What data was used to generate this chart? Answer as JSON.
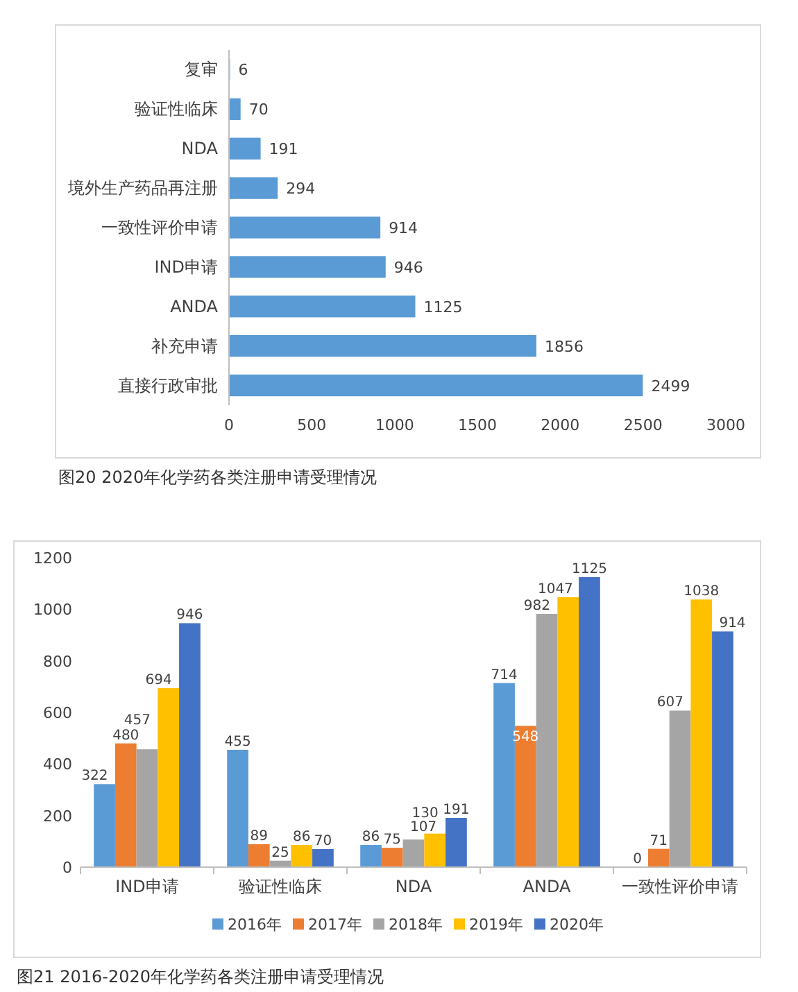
{
  "chart_data": [
    {
      "type": "bar",
      "orientation": "horizontal",
      "categories": [
        "复审",
        "验证性临床",
        "NDA",
        "境外生产药品再注册",
        "一致性评价申请",
        "IND申请",
        "ANDA",
        "补充申请",
        "直接行政审批"
      ],
      "values": [
        6,
        70,
        191,
        294,
        914,
        946,
        1125,
        1856,
        2499
      ],
      "color": "#5b9bd5",
      "xlim": [
        0,
        3000
      ],
      "xticks": [
        0,
        500,
        1000,
        1500,
        2000,
        2500,
        3000
      ],
      "data_labels": true,
      "annotations": [
        "图20  2020年化学药各类注册申请受理情况"
      ]
    },
    {
      "type": "bar",
      "categories": [
        "IND申请",
        "验证性临床",
        "NDA",
        "ANDA",
        "一致性评价申请"
      ],
      "series": [
        {
          "name": "2016年",
          "color": "#5b9bd5",
          "values": [
            322,
            455,
            86,
            714,
            0
          ]
        },
        {
          "name": "2017年",
          "color": "#ed7d31",
          "values": [
            480,
            89,
            75,
            548,
            71
          ]
        },
        {
          "name": "2018年",
          "color": "#a5a5a5",
          "values": [
            457,
            25,
            107,
            982,
            607
          ]
        },
        {
          "name": "2019年",
          "color": "#ffc000",
          "values": [
            694,
            86,
            130,
            1047,
            1038
          ]
        },
        {
          "name": "2020年",
          "color": "#4472c4",
          "values": [
            946,
            70,
            191,
            1125,
            914
          ]
        }
      ],
      "ylim": [
        0,
        1200
      ],
      "yticks": [
        0,
        200,
        400,
        600,
        800,
        1000,
        1200
      ],
      "data_labels": true,
      "legend": "bottom",
      "annotations": [
        "图21  2016-2020年化学药各类注册申请受理情况"
      ]
    }
  ]
}
